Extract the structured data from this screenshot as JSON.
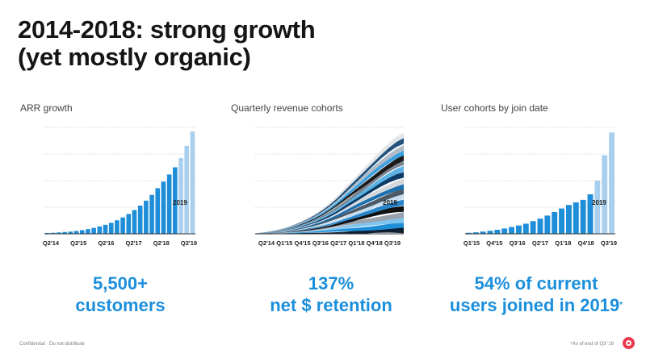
{
  "title": {
    "line1": "2014-2018: strong growth",
    "line2": "(yet mostly organic)"
  },
  "chart_data": [
    {
      "type": "bar",
      "title": "ARR growth",
      "annotation": "2019",
      "tick_labels": [
        "Q2'14",
        "Q2'15",
        "Q2'16",
        "Q2'17",
        "Q2'18",
        "Q2'19"
      ],
      "values": [
        0.4,
        0.5,
        0.7,
        0.9,
        1.1,
        1.4,
        1.8,
        2.3,
        2.9,
        3.6,
        4.4,
        5.4,
        6.6,
        8.0,
        9.7,
        11.6,
        13.8,
        16.2,
        19.0,
        22.3,
        25.5,
        29.0,
        32.5,
        37.0,
        43.0,
        50.0
      ],
      "highlight_from_index": 23,
      "ylim": [
        0,
        52
      ],
      "colors": {
        "actual": "#1f8ed8",
        "projected": "#a8d0ee"
      }
    },
    {
      "type": "area",
      "title": "Quarterly revenue cohorts",
      "annotation": "2019",
      "tick_labels": [
        "Q2'14",
        "Q1'15",
        "Q4'15",
        "Q3'16",
        "Q2'17",
        "Q1'18",
        "Q4'18",
        "Q3'19"
      ],
      "x": [
        0,
        0.05,
        0.1,
        0.15,
        0.2,
        0.25,
        0.3,
        0.35,
        0.4,
        0.45,
        0.5,
        0.55,
        0.6,
        0.65,
        0.7,
        0.75,
        0.8,
        0.85,
        0.9,
        0.95,
        1.0
      ],
      "total": [
        0.3,
        0.8,
        1.5,
        2.4,
        3.5,
        5.0,
        6.8,
        9.0,
        11.5,
        14.5,
        18.0,
        22.0,
        26.5,
        31.0,
        35.5,
        40.0,
        44.5,
        49.0,
        53.0,
        56.5,
        59.0
      ],
      "cohort_count": 18,
      "ylim": [
        0,
        62
      ],
      "colors": {
        "cohorts": [
          "#0f1f33",
          "#1f8ed8",
          "#7fc4ee",
          "#9aa3ad",
          "#111111",
          "#2a86c8",
          "#c6ddef",
          "#4d5966",
          "#1a6fb0",
          "#d4d8dc",
          "#0b3a66",
          "#5cb3e6",
          "#7b848e",
          "#1b1b1b",
          "#3aa0e0",
          "#b0bcc8",
          "#24527d",
          "#e2e6ea"
        ]
      }
    },
    {
      "type": "bar",
      "title": "User cohorts by join date",
      "annotation": "2019",
      "tick_labels": [
        "Q1'15",
        "Q4'15",
        "Q3'16",
        "Q2'17",
        "Q1'18",
        "Q4'18",
        "Q3'19"
      ],
      "values": [
        0.4,
        0.6,
        0.9,
        1.2,
        1.6,
        2.1,
        2.7,
        3.3,
        4.0,
        5.0,
        6.0,
        7.2,
        8.6,
        10.0,
        11.4,
        12.4,
        13.4,
        15.6,
        21.0,
        31.0,
        40.0
      ],
      "highlight_from_index": 18,
      "ylim": [
        0,
        42
      ],
      "colors": {
        "actual": "#1f8ed8",
        "projected": "#a8d0ee"
      }
    }
  ],
  "stats": [
    {
      "line1": "5,500+",
      "line2": "customers"
    },
    {
      "line1": "137%",
      "line2": "net $ retention"
    },
    {
      "line1": "54% of current",
      "line2": "users joined in 2019",
      "marker": "*"
    }
  ],
  "footer": {
    "left": "Confidential · Do not distribute",
    "right": "*As of end of Q3 '19"
  }
}
